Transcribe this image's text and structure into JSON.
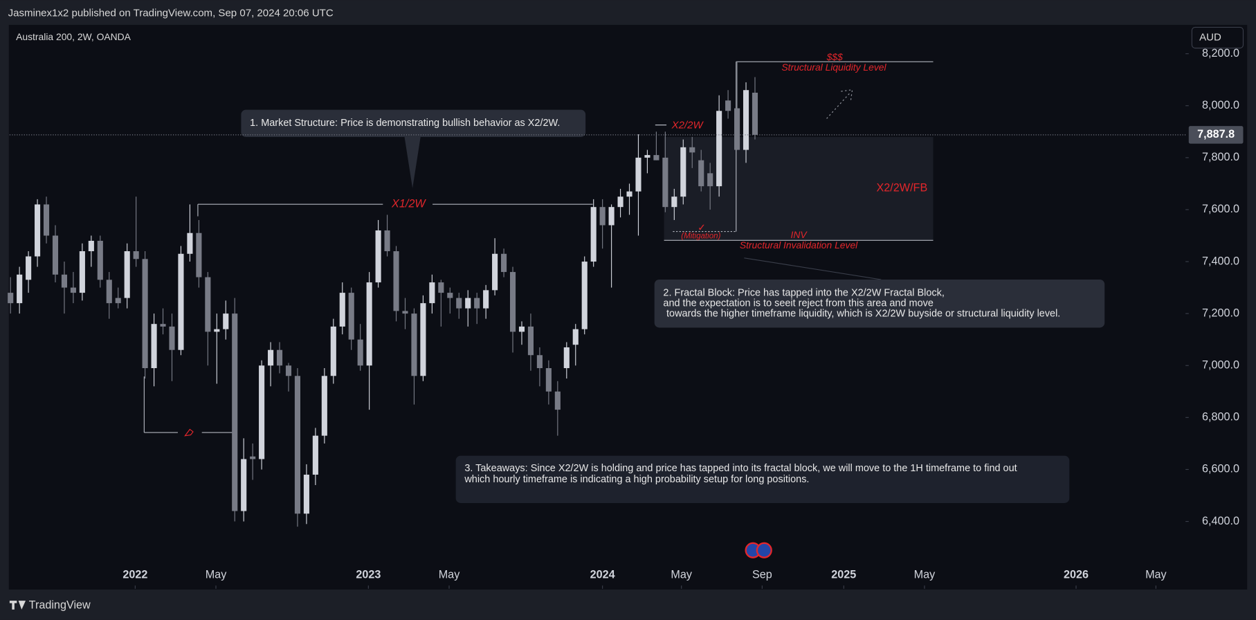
{
  "header": {
    "publisher": "Jasminex1x2 published on TradingView.com, Sep 07, 2024 20:06 UTC",
    "symbol": "Australia 200, 2W, OANDA",
    "currency": "AUD"
  },
  "footer": {
    "brand": "TradingView"
  },
  "chart_data": {
    "type": "candlestick",
    "x": [
      0,
      1,
      2,
      3,
      4,
      5,
      6,
      7,
      8,
      9,
      10,
      11,
      12,
      13,
      14,
      15,
      16,
      17,
      18,
      19,
      20,
      21,
      22,
      23,
      24,
      25,
      26,
      27,
      28,
      29,
      30,
      31,
      32,
      33,
      34,
      35,
      36,
      37,
      38,
      39,
      40,
      41,
      42,
      43,
      44,
      45,
      46,
      47,
      48,
      49,
      50,
      51,
      52,
      53,
      54,
      55,
      56,
      57,
      58,
      59,
      60,
      61,
      62,
      63,
      64,
      65,
      66,
      67,
      68,
      69,
      70,
      71,
      72,
      73,
      74,
      75,
      76,
      77,
      78,
      79,
      80,
      81,
      82,
      83
    ],
    "open": [
      7280,
      7240,
      7330,
      7420,
      7620,
      7500,
      7350,
      7300,
      7280,
      7440,
      7480,
      7330,
      7260,
      7260,
      7440,
      7410,
      6990,
      7160,
      7150,
      7060,
      7430,
      7510,
      7340,
      7130,
      7140,
      7200,
      6440,
      6650,
      6640,
      7000,
      7060,
      7000,
      6960,
      6430,
      6580,
      6730,
      6960,
      7150,
      7280,
      7100,
      7000,
      7320,
      7520,
      7440,
      7210,
      7200,
      6960,
      7240,
      7320,
      7280,
      7260,
      7220,
      7260,
      7220,
      7290,
      7430,
      7360,
      7130,
      7150,
      7040,
      6990,
      6900,
      6990,
      7080,
      7140,
      7400,
      7610,
      7540,
      7610,
      7650,
      7670,
      7800,
      7810,
      7800,
      7610,
      7650,
      7840,
      7790,
      7740,
      7690,
      8020,
      7990,
      7830,
      8050
    ],
    "high": [
      7340,
      7380,
      7440,
      7640,
      7650,
      7540,
      7400,
      7360,
      7470,
      7500,
      7500,
      7360,
      7300,
      7470,
      7650,
      7440,
      7200,
      7220,
      7200,
      7460,
      7620,
      7560,
      7360,
      7200,
      7250,
      7260,
      6720,
      6700,
      7020,
      7090,
      7090,
      7010,
      6990,
      6620,
      6760,
      6990,
      7180,
      7320,
      7300,
      7160,
      7360,
      7560,
      7580,
      7460,
      7260,
      7220,
      7270,
      7350,
      7330,
      7300,
      7280,
      7290,
      7280,
      7310,
      7490,
      7450,
      7380,
      7170,
      7200,
      7070,
      7020,
      6940,
      7090,
      7160,
      7420,
      7640,
      7640,
      7620,
      7680,
      7700,
      7890,
      7830,
      7900,
      7900,
      7680,
      7870,
      7880,
      7830,
      7780,
      8040,
      8060,
      8170,
      8090,
      8110
    ],
    "low": [
      7200,
      7200,
      7280,
      7380,
      7470,
      7320,
      7200,
      7240,
      7250,
      7380,
      7300,
      7180,
      7220,
      7220,
      7380,
      6950,
      6920,
      7120,
      6940,
      7040,
      7400,
      7300,
      7000,
      6930,
      7100,
      6400,
      6400,
      6560,
      6600,
      6920,
      6970,
      6900,
      6380,
      6390,
      6540,
      6700,
      6930,
      7120,
      7060,
      6980,
      6830,
      7300,
      7420,
      7170,
      7140,
      6850,
      6940,
      7200,
      7150,
      7200,
      7180,
      7150,
      7160,
      7180,
      7270,
      7340,
      7050,
      7080,
      6980,
      6920,
      6850,
      6730,
      6950,
      7000,
      7120,
      7380,
      7450,
      7300,
      7570,
      7580,
      7500,
      7740,
      7790,
      7590,
      7560,
      7620,
      7760,
      7670,
      7600,
      7650,
      7950,
      7830,
      7780,
      7870
    ],
    "close": [
      7240,
      7350,
      7420,
      7620,
      7500,
      7350,
      7300,
      7280,
      7440,
      7480,
      7330,
      7240,
      7240,
      7440,
      7410,
      6990,
      7160,
      7150,
      7060,
      7430,
      7510,
      7340,
      7130,
      7140,
      7200,
      6440,
      6640,
      6640,
      7000,
      7060,
      7000,
      6960,
      6430,
      6580,
      6730,
      6960,
      7150,
      7280,
      7100,
      7000,
      7320,
      7520,
      7440,
      7210,
      7200,
      6960,
      7240,
      7320,
      7280,
      7260,
      7220,
      7260,
      7220,
      7290,
      7430,
      7360,
      7130,
      7150,
      7040,
      6990,
      6900,
      6830,
      7070,
      7140,
      7400,
      7610,
      7540,
      7610,
      7650,
      7670,
      7800,
      7810,
      7790,
      7610,
      7650,
      7840,
      7820,
      7690,
      7690,
      7980,
      7980,
      7830,
      8060,
      7887.8
    ],
    "colors": {
      "up": "#d1d4dc",
      "down": "#787b86"
    },
    "xlim": [
      -0.1,
      131
    ],
    "xticks": [
      {
        "value": 13.9,
        "label": "2022"
      },
      {
        "value": 22.9,
        "label": "May"
      },
      {
        "value": 39.9,
        "label": "2023"
      },
      {
        "value": 48.9,
        "label": "May"
      },
      {
        "value": 66,
        "label": "2024"
      },
      {
        "value": 74.8,
        "label": "May"
      },
      {
        "value": 83.8,
        "label": "Sep"
      },
      {
        "value": 92.9,
        "label": "2025"
      },
      {
        "value": 101.9,
        "label": "May"
      },
      {
        "value": 118.8,
        "label": "2026"
      },
      {
        "value": 127.7,
        "label": "May"
      }
    ],
    "ylim": [
      6141,
      8308
    ],
    "yticks": [
      {
        "value": 6400,
        "label": "6,400.0"
      },
      {
        "value": 6600,
        "label": "6,600.0"
      },
      {
        "value": 6800,
        "label": "6,800.0"
      },
      {
        "value": 7000,
        "label": "7,000.0"
      },
      {
        "value": 7200,
        "label": "7,200.0"
      },
      {
        "value": 7400,
        "label": "7,400.0"
      },
      {
        "value": 7600,
        "label": "7,600.0"
      },
      {
        "value": 7800,
        "label": "7,800.0"
      },
      {
        "value": 8000,
        "label": "8,000.0"
      },
      {
        "value": 8200,
        "label": "8,200.0"
      }
    ],
    "last_price": {
      "value": 7887.8,
      "label": "7,887.8"
    },
    "annotations": {
      "note1": "1. Market Structure: Price is demonstrating bullish behavior as X2/2W.",
      "x1": "X1/2W",
      "x2": "X2/2W",
      "dollars": "$$$",
      "liquidity": "Structural Liquidity Level",
      "fb": "X2/2W/FB",
      "inv": "INV",
      "invalidation": "Structural Invalidation Level",
      "check": "✓",
      "mitigation": "(Mitigation)",
      "note2": [
        "2. Fractal Block: Price has tapped into the X2/2W Fractal Block,",
        "and the expectation is to seeit reject from this area and move",
        "towards the higher timeframe liquidity, which is X2/2W buyside or structural liquidity level."
      ],
      "note3": [
        "3. Takeaways: Since X2/2W is holding and price has tapped into its fractal block, we will move to the 1H timeframe to find out",
        "which hourly timeframe is indicating a high probability setup for long positions."
      ]
    }
  }
}
